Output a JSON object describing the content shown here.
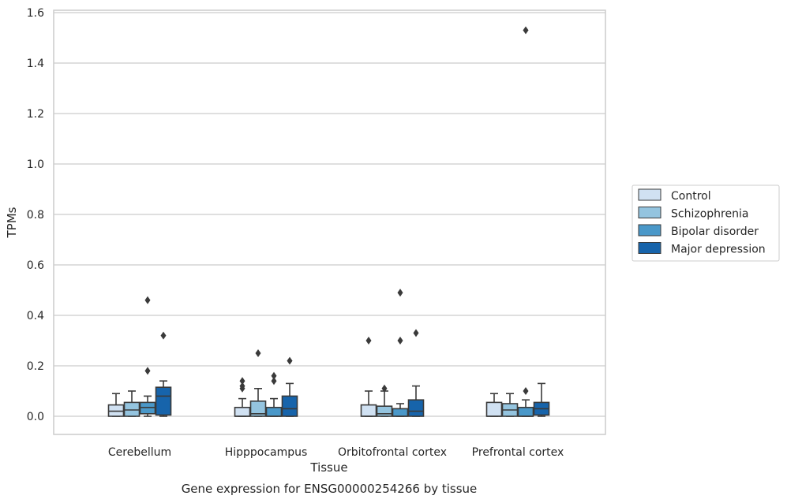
{
  "chart_data": {
    "type": "boxplot",
    "title": "Gene expression for ENSG00000254266 by tissue",
    "xlabel": "Tissue",
    "ylabel": "TPMs",
    "ylim": [
      -0.07,
      1.61
    ],
    "yticks": [
      "0.0",
      "0.2",
      "0.4",
      "0.6",
      "0.8",
      "1.0",
      "1.2",
      "1.4",
      "1.6"
    ],
    "ytick_values": [
      0.0,
      0.2,
      0.4,
      0.6,
      0.8,
      1.0,
      1.2,
      1.4,
      1.6
    ],
    "grid": "horizontal",
    "legend_position": "right",
    "categories": [
      "Cerebellum",
      "Hipppocampus",
      "Orbitofrontal cortex",
      "Prefrontal cortex"
    ],
    "series": [
      {
        "name": "Control",
        "color": "#d0e1f2",
        "boxes": [
          {
            "whisker_low": 0.0,
            "q1": 0.0,
            "median": 0.02,
            "q3": 0.045,
            "whisker_high": 0.09,
            "outliers": []
          },
          {
            "whisker_low": 0.0,
            "q1": 0.0,
            "median": 0.0,
            "q3": 0.035,
            "whisker_high": 0.07,
            "outliers": [
              0.11,
              0.12,
              0.14
            ]
          },
          {
            "whisker_low": 0.0,
            "q1": 0.0,
            "median": 0.0,
            "q3": 0.045,
            "whisker_high": 0.1,
            "outliers": [
              0.3
            ]
          },
          {
            "whisker_low": 0.0,
            "q1": 0.0,
            "median": 0.0,
            "q3": 0.055,
            "whisker_high": 0.09,
            "outliers": []
          }
        ]
      },
      {
        "name": "Schizophrenia",
        "color": "#94c4df",
        "boxes": [
          {
            "whisker_low": 0.0,
            "q1": 0.0,
            "median": 0.025,
            "q3": 0.055,
            "whisker_high": 0.1,
            "outliers": []
          },
          {
            "whisker_low": 0.0,
            "q1": 0.0,
            "median": 0.01,
            "q3": 0.06,
            "whisker_high": 0.11,
            "outliers": [
              0.25
            ]
          },
          {
            "whisker_low": 0.0,
            "q1": 0.0,
            "median": 0.01,
            "q3": 0.04,
            "whisker_high": 0.1,
            "outliers": [
              0.11
            ]
          },
          {
            "whisker_low": 0.0,
            "q1": 0.0,
            "median": 0.025,
            "q3": 0.05,
            "whisker_high": 0.09,
            "outliers": []
          }
        ]
      },
      {
        "name": "Bipolar disorder",
        "color": "#4a98c9",
        "boxes": [
          {
            "whisker_low": 0.0,
            "q1": 0.01,
            "median": 0.035,
            "q3": 0.055,
            "whisker_high": 0.08,
            "outliers": [
              0.18,
              0.46
            ]
          },
          {
            "whisker_low": 0.0,
            "q1": 0.0,
            "median": 0.0,
            "q3": 0.035,
            "whisker_high": 0.07,
            "outliers": [
              0.14,
              0.16
            ]
          },
          {
            "whisker_low": 0.0,
            "q1": 0.0,
            "median": 0.0,
            "q3": 0.03,
            "whisker_high": 0.05,
            "outliers": [
              0.3,
              0.49
            ]
          },
          {
            "whisker_low": 0.0,
            "q1": 0.0,
            "median": 0.0,
            "q3": 0.035,
            "whisker_high": 0.065,
            "outliers": [
              0.1,
              1.53
            ]
          }
        ]
      },
      {
        "name": "Major depression",
        "color": "#1764ab",
        "boxes": [
          {
            "whisker_low": 0.0,
            "q1": 0.005,
            "median": 0.08,
            "q3": 0.115,
            "whisker_high": 0.14,
            "outliers": [
              0.32
            ]
          },
          {
            "whisker_low": 0.0,
            "q1": 0.0,
            "median": 0.03,
            "q3": 0.08,
            "whisker_high": 0.13,
            "outliers": [
              0.22
            ]
          },
          {
            "whisker_low": 0.0,
            "q1": 0.0,
            "median": 0.02,
            "q3": 0.065,
            "whisker_high": 0.12,
            "outliers": [
              0.33
            ]
          },
          {
            "whisker_low": 0.0,
            "q1": 0.005,
            "median": 0.03,
            "q3": 0.055,
            "whisker_high": 0.13,
            "outliers": []
          }
        ]
      }
    ]
  }
}
